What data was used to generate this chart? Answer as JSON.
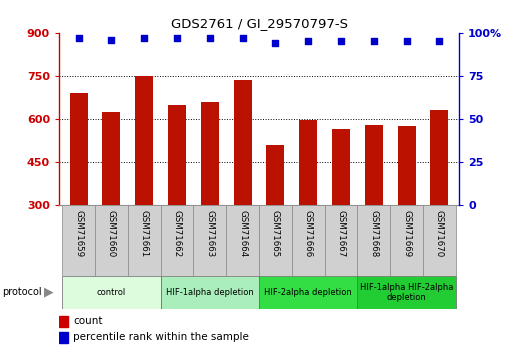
{
  "title": "GDS2761 / GI_29570797-S",
  "samples": [
    "GSM71659",
    "GSM71660",
    "GSM71661",
    "GSM71662",
    "GSM71663",
    "GSM71664",
    "GSM71665",
    "GSM71666",
    "GSM71667",
    "GSM71668",
    "GSM71669",
    "GSM71670"
  ],
  "counts": [
    690,
    625,
    750,
    648,
    660,
    735,
    510,
    598,
    565,
    578,
    575,
    632
  ],
  "percentile_ranks": [
    97,
    96,
    97,
    97,
    97,
    97,
    94,
    95,
    95,
    95,
    95,
    95
  ],
  "bar_color": "#bb1100",
  "dot_color": "#0000cc",
  "ylim_left": [
    300,
    900
  ],
  "ylim_right": [
    0,
    100
  ],
  "yticks_left": [
    300,
    450,
    600,
    750,
    900
  ],
  "yticks_right": [
    0,
    25,
    50,
    75,
    100
  ],
  "grid_values": [
    450,
    600,
    750
  ],
  "protocol_groups": [
    {
      "label": "control",
      "start": 0,
      "end": 2,
      "color": "#ddfcdd"
    },
    {
      "label": "HIF-1alpha depletion",
      "start": 3,
      "end": 5,
      "color": "#aaeebb"
    },
    {
      "label": "HIF-2alpha depletion",
      "start": 6,
      "end": 8,
      "color": "#33dd44"
    },
    {
      "label": "HIF-1alpha HIF-2alpha\ndepletion",
      "start": 9,
      "end": 11,
      "color": "#22cc33"
    }
  ],
  "left_axis_color": "#cc0000",
  "right_axis_color": "#0000cc",
  "legend_count_color": "#cc0000",
  "legend_dot_color": "#0000cc",
  "sample_box_color": "#d0d0d0",
  "protocol_arrow_color": "#888888"
}
